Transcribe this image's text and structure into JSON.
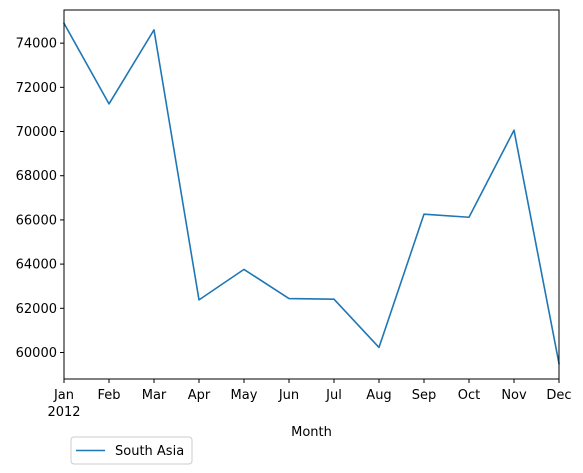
{
  "chart_data": {
    "type": "line",
    "x": [
      "Jan",
      "Feb",
      "Mar",
      "Apr",
      "May",
      "Jun",
      "Jul",
      "Aug",
      "Sep",
      "Oct",
      "Nov",
      "Dec"
    ],
    "year_label": "2012",
    "series": [
      {
        "name": "South Asia",
        "color": "#1f77b4",
        "values": [
          74900,
          71250,
          74600,
          62380,
          63760,
          62440,
          62410,
          60230,
          66260,
          66120,
          70060,
          59500
        ]
      }
    ],
    "xlabel": "Month",
    "ylabel": "",
    "ylim": [
      58800,
      75500
    ],
    "yticks": [
      60000,
      62000,
      64000,
      66000,
      68000,
      70000,
      72000,
      74000
    ],
    "ytick_labels": [
      "60000",
      "62000",
      "64000",
      "66000",
      "68000",
      "70000",
      "72000",
      "74000"
    ],
    "grid": false,
    "legend_position": "bottom-left"
  }
}
